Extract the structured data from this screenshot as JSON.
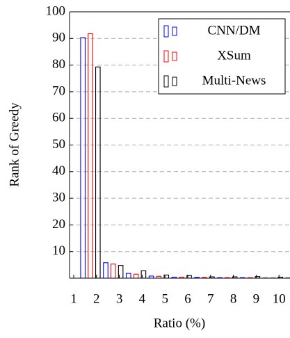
{
  "chart_data": {
    "type": "bar",
    "xlabel": "Ratio (%)",
    "ylabel": "Rank of Greedy",
    "categories": [
      "1",
      "2",
      "3",
      "4",
      "5",
      "6",
      "7",
      "8",
      "9",
      "10"
    ],
    "series": [
      {
        "name": "CNN/DM",
        "color": "#0000ff",
        "values": [
          90.3,
          5.8,
          1.8,
          0.8,
          0.4,
          0.3,
          0.2,
          0.2,
          0.1,
          0.1
        ]
      },
      {
        "name": "XSum",
        "color": "#ff0000",
        "values": [
          91.8,
          5.3,
          1.5,
          0.7,
          0.4,
          0.3,
          0.2,
          0.2,
          0.1,
          0.1
        ]
      },
      {
        "name": "Multi-News",
        "color": "#000000",
        "values": [
          79.3,
          4.8,
          2.8,
          1.2,
          1.0,
          0.5,
          0.5,
          0.6,
          0.4,
          0.3
        ]
      }
    ],
    "ylim": [
      0,
      100
    ],
    "yticks": [
      10,
      20,
      30,
      40,
      50,
      60,
      70,
      80,
      90,
      100
    ],
    "grid": true,
    "legend": "top-right"
  }
}
